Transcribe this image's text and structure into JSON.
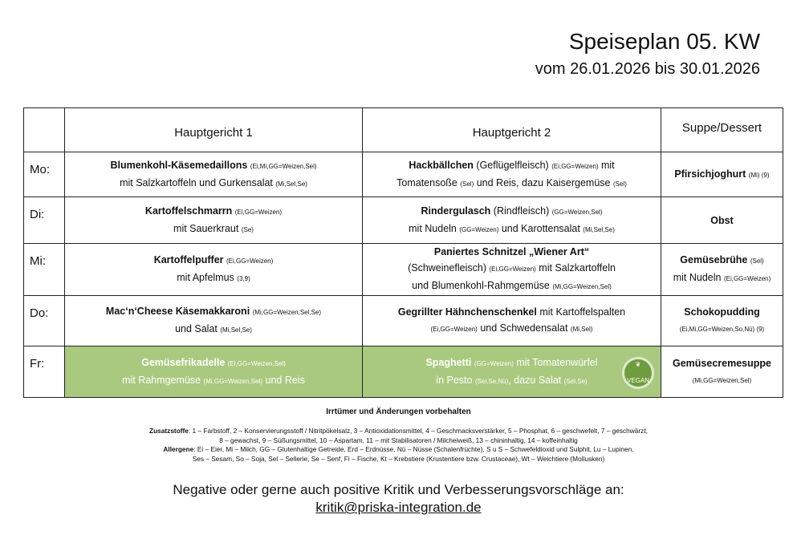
{
  "header": {
    "title": "Speiseplan 05. KW",
    "subtitle": "vom 26.01.2026 bis 30.01.2026"
  },
  "table": {
    "columns": [
      "",
      "Hauptgericht 1",
      "Hauptgericht 2",
      "Suppe/Dessert"
    ],
    "rows": [
      {
        "day": "Mo:",
        "green": false,
        "cells": [
          [
            [
              {
                "t": "Blumenkohl-Käsemedaillons ",
                "s": "b"
              },
              {
                "t": "(Ei,Mi,GG=Weizen,Sel)",
                "s": "a"
              }
            ],
            [
              {
                "t": "mit Salzkartoffeln und Gurkensalat ",
                "s": "n"
              },
              {
                "t": "(Mi,Sel,Se)",
                "s": "a"
              }
            ]
          ],
          [
            [
              {
                "t": "Hackbällchen ",
                "s": "b"
              },
              {
                "t": "(Geflügelfleisch) ",
                "s": "n"
              },
              {
                "t": "(Ei,GG=Weizen)",
                "s": "a"
              },
              {
                "t": " mit",
                "s": "n"
              }
            ],
            [
              {
                "t": "Tomatensoße ",
                "s": "n"
              },
              {
                "t": "(Sel)",
                "s": "a"
              },
              {
                "t": " und Reis, dazu Kaisergemüse ",
                "s": "n"
              },
              {
                "t": "(Sel)",
                "s": "a"
              }
            ]
          ],
          [
            [
              {
                "t": "Pfirsichjoghurt ",
                "s": "b"
              },
              {
                "t": "(Mi) (9)",
                "s": "a"
              }
            ]
          ]
        ]
      },
      {
        "day": "Di:",
        "green": false,
        "cells": [
          [
            [
              {
                "t": "Kartoffelschmarrn ",
                "s": "b"
              },
              {
                "t": "(Ei,GG=Weizen)",
                "s": "a"
              }
            ],
            [
              {
                "t": "mit Sauerkraut ",
                "s": "n"
              },
              {
                "t": "(Se)",
                "s": "a"
              }
            ]
          ],
          [
            [
              {
                "t": "Rindergulasch ",
                "s": "b"
              },
              {
                "t": "(Rindfleisch) ",
                "s": "n"
              },
              {
                "t": "(GG=Weizen,Sel)",
                "s": "a"
              }
            ],
            [
              {
                "t": "mit Nudeln ",
                "s": "n"
              },
              {
                "t": "(GG=Weizen)",
                "s": "a"
              },
              {
                "t": " und Karottensalat ",
                "s": "n"
              },
              {
                "t": "(Mi,Sel,Se)",
                "s": "a"
              }
            ]
          ],
          [
            [
              {
                "t": "Obst",
                "s": "b"
              }
            ]
          ]
        ]
      },
      {
        "day": "Mi:",
        "green": false,
        "cells": [
          [
            [
              {
                "t": "Kartoffelpuffer ",
                "s": "b"
              },
              {
                "t": "(Ei,GG=Weizen)",
                "s": "a"
              }
            ],
            [
              {
                "t": "mit Apfelmus ",
                "s": "n"
              },
              {
                "t": "(3,9)",
                "s": "a"
              }
            ]
          ],
          [
            [
              {
                "t": "Paniertes Schnitzel „Wiener Art“",
                "s": "b"
              }
            ],
            [
              {
                "t": "(Schweinefleisch) ",
                "s": "n"
              },
              {
                "t": "(Ei,GG=Weizen)",
                "s": "a"
              },
              {
                "t": " mit Salzkartoffeln",
                "s": "n"
              }
            ],
            [
              {
                "t": "und Blumenkohl-Rahmgemüse ",
                "s": "n"
              },
              {
                "t": "(Mi,GG=Weizen,Sel)",
                "s": "a"
              }
            ]
          ],
          [
            [
              {
                "t": "Gemüsebrühe ",
                "s": "b"
              },
              {
                "t": "(Sel)",
                "s": "a"
              }
            ],
            [
              {
                "t": "mit Nudeln ",
                "s": "n"
              },
              {
                "t": "(Ei,GG=Weizen)",
                "s": "a"
              }
            ]
          ]
        ]
      },
      {
        "day": "Do:",
        "green": false,
        "cells": [
          [
            [
              {
                "t": "Mac‘n‘Cheese Käsemakkaroni ",
                "s": "b"
              },
              {
                "t": "(Mi,GG=Weizen,Sel,Se)",
                "s": "a"
              }
            ],
            [
              {
                "t": "und Salat ",
                "s": "n"
              },
              {
                "t": "(Mi,Sel,Se)",
                "s": "a"
              }
            ]
          ],
          [
            [
              {
                "t": "Gegrillter Hähnchenschenkel",
                "s": "b"
              },
              {
                "t": " mit Kartoffelspalten",
                "s": "n"
              }
            ],
            [
              {
                "t": "(Ei,GG=Weizen)",
                "s": "a"
              },
              {
                "t": " und Schwedensalat ",
                "s": "n"
              },
              {
                "t": "(Mi,Sel)",
                "s": "a"
              }
            ]
          ],
          [
            [
              {
                "t": "Schokopudding",
                "s": "b"
              }
            ],
            [
              {
                "t": "(Ei,Mi,GG=Weizen,So,Nü) (9)",
                "s": "a"
              }
            ]
          ]
        ]
      },
      {
        "day": "Fr:",
        "green": true,
        "cells": [
          [
            [
              {
                "t": "Gemüsefrikadelle ",
                "s": "b"
              },
              {
                "t": "(Ei,GG=Weizen,Sel)",
                "s": "a"
              }
            ],
            [
              {
                "t": "mit Rahmgemüse ",
                "s": "n"
              },
              {
                "t": "(Mi,GG=Weizen,Sel)",
                "s": "a"
              },
              {
                "t": " und Reis",
                "s": "n"
              }
            ]
          ],
          [
            [
              {
                "t": "Spaghetti ",
                "s": "b"
              },
              {
                "t": "(GG=Weizen)",
                "s": "a"
              },
              {
                "t": " mit Tomatenwürfel",
                "s": "n"
              }
            ],
            [
              {
                "t": "in Pesto ",
                "s": "n"
              },
              {
                "t": "(Sel,Se,Nü)",
                "s": "a"
              },
              {
                "t": ", dazu Salat ",
                "s": "n"
              },
              {
                "t": "(Sel,Se)",
                "s": "a"
              }
            ]
          ],
          [
            [
              {
                "t": "Gemüsecremesuppe",
                "s": "b"
              }
            ],
            [
              {
                "t": "(Mi,GG=Weizen,Sel)",
                "s": "a"
              }
            ]
          ]
        ]
      }
    ]
  },
  "vegan_badge": {
    "label": "VEGAN",
    "color": "#6f9c3e"
  },
  "colors": {
    "vegan_row": "#a9c97f"
  },
  "footer": {
    "note": "Irrtümer und Änderungen vorbehalten",
    "additives_label": "Zusatzstoffe",
    "additives_1": ": 1 – Farbstoff, 2 – Konservierungsstoff / Nitritpökelsalz, 3 – Antioxidationsmittel, 4 – Geschmacksverstärker, 5 – Phosphat, 6 – geschwefelt, 7 – geschwärzt,",
    "additives_2": "8 – gewachst, 9 – Süßungsmittel, 10 – Aspartam, 11 – mit Stabilisatoren / Milcheiweiß, 13 – chininhaltig, 14 – koffeinhaltig",
    "allergens_label": "Allergene",
    "allergens_1": ": Ei – Eier, Mi – Milch, GG – Glutenhaltige Getreide, Erd – Erdnüsse, Nü – Nüsse (Schalenfrüchte), S u S – Schwefeldioxid und Sulphit, Lu – Lupinen,",
    "allergens_2": "Ses – Sesam, So – Soja, Sel – Sellerie, Se – Senf, Fi – Fische, Kt – Krebstiere (Krustentiere bzw. Crustaceae), Wt – Weichtiere (Mollusken)",
    "feedback": "Negative oder gerne auch positive Kritik und Verbesserungsvorschläge an:",
    "email": "kritik@priska-integration.de"
  }
}
